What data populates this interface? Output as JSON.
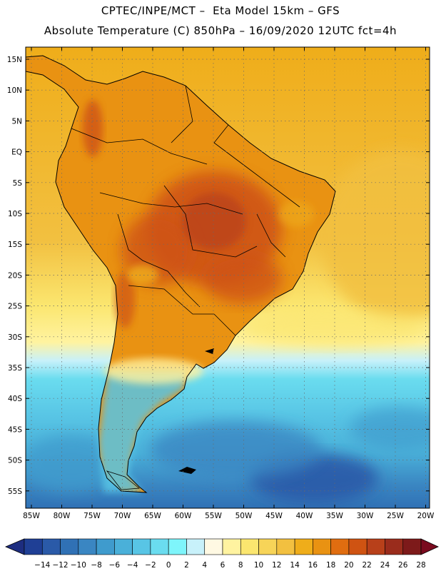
{
  "header": {
    "line1": "CPTEC/INPE/MCT –  Eta Model 15km – GFS",
    "line2": "Absolute Temperature (C) 850hPa – 16/09/2020 12UTC fct=4h"
  },
  "axes": {
    "lat_labels": [
      "15N",
      "10N",
      "5N",
      "EQ",
      "5S",
      "10S",
      "15S",
      "20S",
      "25S",
      "30S",
      "35S",
      "40S",
      "45S",
      "50S",
      "55S"
    ],
    "lon_labels": [
      "85W",
      "80W",
      "75W",
      "70W",
      "65W",
      "60W",
      "55W",
      "50W",
      "45W",
      "40W",
      "35W",
      "30W",
      "25W",
      "20W"
    ]
  },
  "colorbar": {
    "labels": [
      "-14",
      "-12",
      "-10",
      "-8",
      "-6",
      "-4",
      "-2",
      "0",
      "2",
      "4",
      "6",
      "8",
      "10",
      "12",
      "14",
      "16",
      "18",
      "20",
      "22",
      "24",
      "26",
      "28"
    ],
    "colors": [
      "#1f3f95",
      "#2a5aa8",
      "#3071b5",
      "#3a86c2",
      "#3f9bcd",
      "#4ab0d9",
      "#58c5e5",
      "#6adcef",
      "#7ef5fb",
      "#c8f1fa",
      "#fff9e3",
      "#fff3a0",
      "#fbe66f",
      "#f7d458",
      "#f2c040",
      "#efad1a",
      "#e99212",
      "#e06d10",
      "#cf5312",
      "#b8401a",
      "#9a2c1c",
      "#7d1a1a"
    ],
    "underflow_color": "#1d2d80",
    "overflow_color": "#7a0a1e"
  },
  "legend_colors": {
    "ocean_north": "#efad1a",
    "ocean_mid": "#fbe66f",
    "ocean_cool": "#c8f1fa",
    "ocean_cold": "#4ab0d9",
    "land_hot": "#cf5312",
    "coast_line": "#000000"
  }
}
